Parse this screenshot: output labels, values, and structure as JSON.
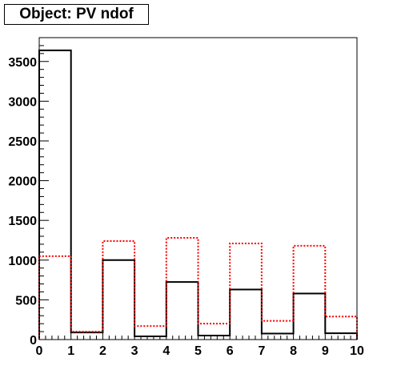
{
  "chart_data": {
    "type": "bar",
    "title": "Object: PV ndof",
    "xlabel": "",
    "ylabel": "",
    "xlim": [
      0,
      10
    ],
    "ylim": [
      0,
      3800
    ],
    "xticks": [
      "0",
      "1",
      "2",
      "3",
      "4",
      "5",
      "6",
      "7",
      "8",
      "9",
      "10"
    ],
    "yticks": [
      "0",
      "500",
      "1000",
      "1500",
      "2000",
      "2500",
      "3000",
      "3500"
    ],
    "bin_edges": [
      0,
      1,
      2,
      3,
      4,
      5,
      6,
      7,
      8,
      9,
      10
    ],
    "grid": false,
    "legend": "none",
    "series": [
      {
        "style": "solid",
        "color": "#000000",
        "values": [
          3640,
          90,
          1000,
          40,
          725,
          50,
          630,
          75,
          580,
          80
        ]
      },
      {
        "style": "dotted",
        "color": "#ff0000",
        "values": [
          1050,
          100,
          1240,
          170,
          1280,
          200,
          1210,
          235,
          1180,
          290
        ]
      }
    ]
  }
}
